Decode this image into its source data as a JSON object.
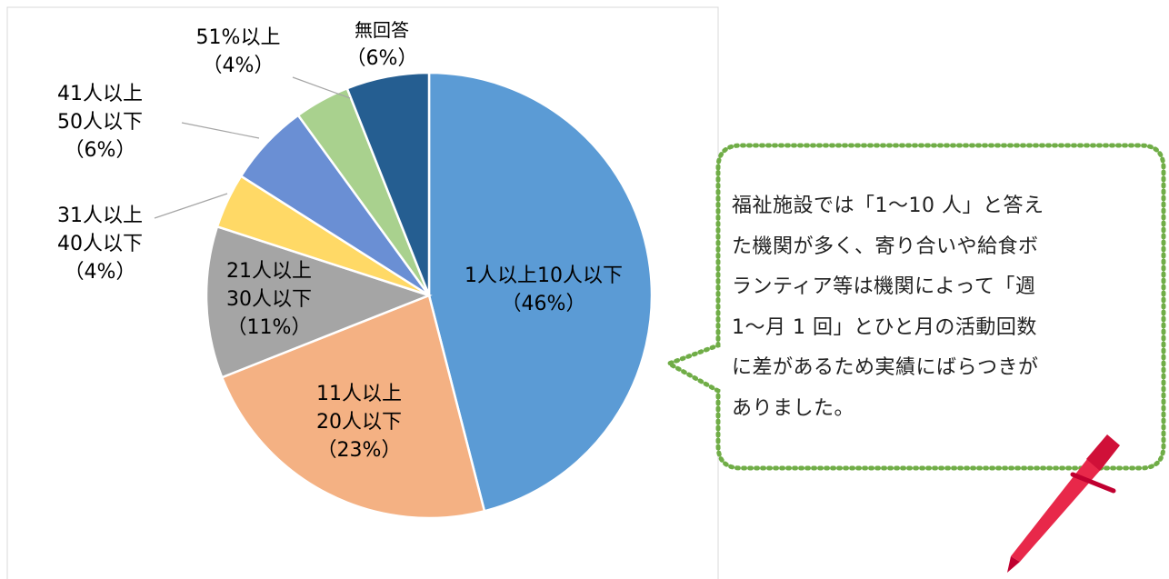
{
  "chart_data": {
    "type": "pie",
    "categories": [
      "1人以上10人以下",
      "11人以上\n20人以下",
      "21人以上\n30人以下",
      "31人以上\n40人以下",
      "41人以上\n50人以下",
      "51%以上",
      "無回答"
    ],
    "values": [
      46,
      23,
      11,
      4,
      6,
      4,
      6
    ],
    "value_labels": [
      "（46%）",
      "（23%）",
      "（11%）",
      "（4%）",
      "（6%）",
      "（4%）",
      "（6%）"
    ],
    "colors": [
      "#5b9bd5",
      "#f4b183",
      "#a5a5a5",
      "#ffd966",
      "#6a8fd4",
      "#a9d18e",
      "#255e91"
    ]
  },
  "annotation": "福祉施設では「1～10 人」と答え\nた機関が多く、寄り合いや給食ボ\nランティア等は機関によって「週\n1～月 1 回」とひと月の活動回数\nに差があるため実績にばらつきが\nありました。"
}
